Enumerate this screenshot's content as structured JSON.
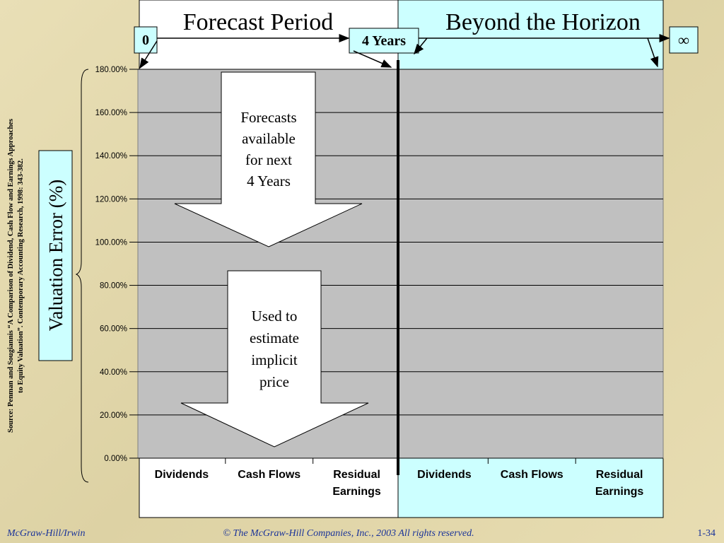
{
  "chart_data": {
    "type": "bar",
    "categories": [
      "Dividends",
      "Cash Flows",
      "Residual Earnings",
      "Dividends",
      "Cash Flows",
      "Residual Earnings"
    ],
    "ylim": [
      0,
      180
    ],
    "yticks": [
      {
        "value": 0,
        "label": "0.00%"
      },
      {
        "value": 20,
        "label": "20.00%"
      },
      {
        "value": 40,
        "label": "40.00%"
      },
      {
        "value": 60,
        "label": "60.00%"
      },
      {
        "value": 80,
        "label": "80.00%"
      },
      {
        "value": 100,
        "label": "100.00%"
      },
      {
        "value": 120,
        "label": "120.00%"
      },
      {
        "value": 140,
        "label": "140.00%"
      },
      {
        "value": 160,
        "label": "160.00%"
      },
      {
        "value": 180,
        "label": "180.00%"
      }
    ],
    "grid": true,
    "ylabel": "Valuation Error (%)"
  },
  "slide": {
    "header_left": "Forecast Period",
    "header_right": "Beyond the Horizon",
    "marker_start": "0",
    "marker_mid": "4 Years",
    "marker_end": "∞",
    "arrow_top": [
      "Forecasts",
      "available",
      "for next",
      "4 Years"
    ],
    "arrow_bottom": [
      "Used to",
      "estimate",
      "implicit",
      "price"
    ],
    "source": [
      "Source:  Penman and Sougiannis “A Comparison of Dividend, Cash Flow and Earnings Approaches",
      "to Equity Valuation”.  Contemporary Accounting Research, 1998: 343-382."
    ],
    "footer_left": "McGraw-Hill/Irwin",
    "footer_center": "© The McGraw-Hill Companies, Inc., 2003  All rights reserved.",
    "footer_right": "1-34"
  }
}
